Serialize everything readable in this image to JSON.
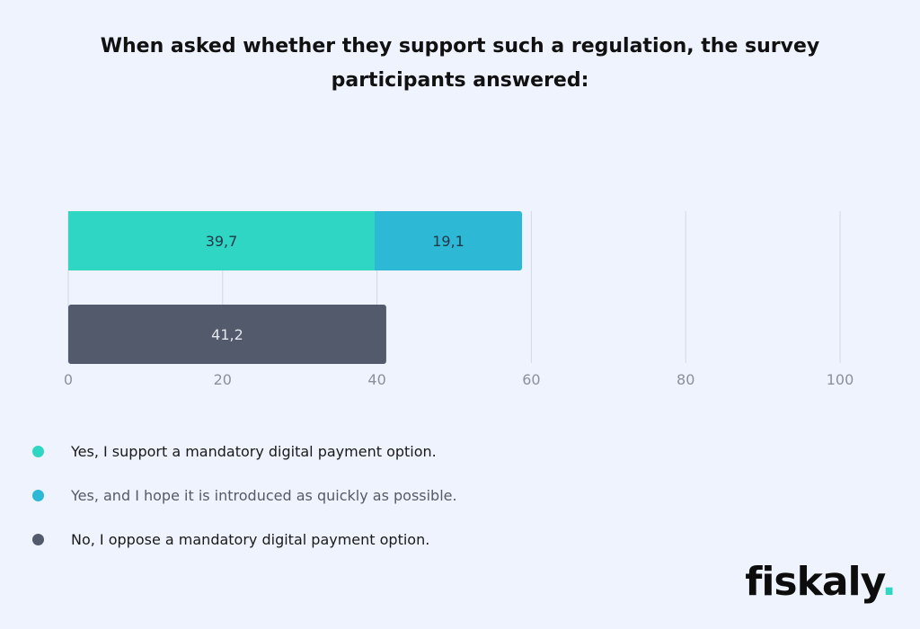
{
  "title": "When asked whether they support such a regulation, the survey participants answered:",
  "chart_data": {
    "type": "bar",
    "orientation": "horizontal",
    "stacked": true,
    "rows": [
      {
        "segments": [
          {
            "series": 0,
            "value": 39.7,
            "label": "39,7"
          },
          {
            "series": 1,
            "value": 19.1,
            "label": "19,1"
          }
        ]
      },
      {
        "segments": [
          {
            "series": 2,
            "value": 41.2,
            "label": "41,2"
          }
        ]
      }
    ],
    "series": [
      {
        "name": "Yes, I support a mandatory digital payment option.",
        "color": "#2fd6c3"
      },
      {
        "name": "Yes, and I hope it is introduced as quickly as possible.",
        "color": "#2db8d6"
      },
      {
        "name": "No, I oppose a mandatory digital payment option.",
        "color": "#535a6c"
      }
    ],
    "xlim": [
      0,
      100
    ],
    "xticks": [
      0,
      20,
      40,
      60,
      80,
      100
    ],
    "grid": true,
    "legend_position": "bottom-left"
  },
  "legend_text_colors": [
    "#1a1a1a",
    "#555b66",
    "#1a1a1a"
  ],
  "logo": {
    "word": "fiskaly",
    "dot": "."
  }
}
